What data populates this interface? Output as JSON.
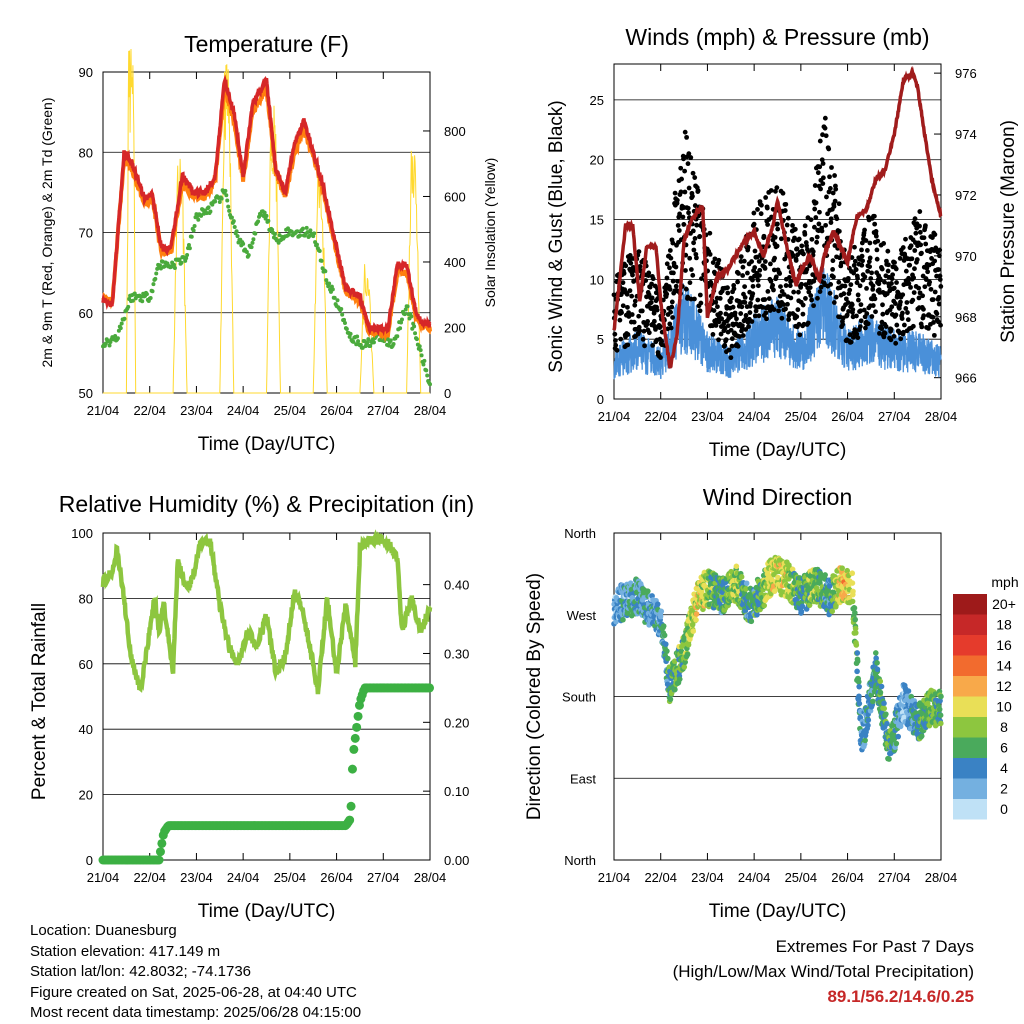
{
  "chart_data": [
    {
      "type": "line",
      "title": "Temperature (F)",
      "xlabel": "Time (Day/UTC)",
      "ylabel": "2m & 9m T (Red, Orange) & 2m Td (Green)",
      "y2label": "Solar Insolation (Yellow)",
      "x_ticks": [
        "21/04",
        "22/04",
        "23/04",
        "24/04",
        "25/04",
        "26/04",
        "27/04",
        "28/04"
      ],
      "ylim": [
        50,
        90
      ],
      "y_ticks": [
        50,
        60,
        70,
        80,
        90
      ],
      "y2lim": [
        0,
        980
      ],
      "y2_ticks": [
        0,
        200,
        400,
        600,
        800
      ],
      "grid": "horizontal",
      "series": [
        {
          "color": "#d62728",
          "days": [
            0,
            0.2,
            0.45,
            0.6,
            0.9,
            1.05,
            1.25,
            1.45,
            1.7,
            1.95,
            2.2,
            2.4,
            2.6,
            2.8,
            3.0,
            3.2,
            3.5,
            3.7,
            3.9,
            4.1,
            4.3,
            4.5,
            4.7,
            5.0,
            5.2,
            5.5,
            5.7,
            5.9,
            6.1,
            6.3,
            6.5,
            6.7,
            6.8,
            7.0
          ],
          "values": [
            61.5,
            61,
            80,
            79,
            74,
            75,
            68,
            68,
            77,
            75,
            75,
            77,
            89,
            85,
            77,
            86,
            89,
            78,
            75,
            81,
            84,
            80,
            76,
            68,
            63,
            62,
            58,
            58,
            58,
            66,
            66,
            60,
            59,
            58.5
          ]
        },
        {
          "color": "#ff7f0e",
          "days": [
            0,
            0.2,
            0.45,
            0.6,
            0.9,
            1.05,
            1.25,
            1.45,
            1.7,
            1.95,
            2.2,
            2.4,
            2.6,
            2.8,
            3.0,
            3.2,
            3.5,
            3.7,
            3.9,
            4.1,
            4.3,
            4.5,
            4.7,
            5.0,
            5.2,
            5.5,
            5.7,
            5.9,
            6.1,
            6.3,
            6.5,
            6.7,
            6.8,
            7.0
          ],
          "values": [
            62,
            61.5,
            79,
            78,
            73.5,
            74.5,
            67.5,
            67.5,
            76,
            74.5,
            74.5,
            76.5,
            88,
            84,
            76.5,
            85,
            88,
            77.5,
            74.5,
            80,
            83,
            79.5,
            75.5,
            67.5,
            62.5,
            61.5,
            57.5,
            57.5,
            57.5,
            65,
            65,
            59.5,
            58.5,
            58
          ]
        },
        {
          "color": "#4aaa3c",
          "days": [
            0,
            0.3,
            0.6,
            1.0,
            1.2,
            1.5,
            1.8,
            2.0,
            2.3,
            2.6,
            2.9,
            3.1,
            3.4,
            3.7,
            3.9,
            4.2,
            4.5,
            4.8,
            5.1,
            5.3,
            5.6,
            5.9,
            6.2,
            6.5,
            6.8,
            7.0
          ],
          "values": [
            56,
            57,
            62,
            62,
            66,
            66,
            67,
            72,
            73,
            75,
            69,
            67,
            73,
            69,
            70,
            70,
            70,
            64,
            60,
            57,
            56,
            57,
            56,
            61,
            55,
            51
          ]
        },
        {
          "color": "#ffd92f",
          "days": [
            0,
            0.5,
            0.55,
            0.65,
            0.7,
            1.5,
            1.6,
            1.7,
            1.8,
            2.5,
            2.6,
            2.7,
            2.8,
            3.5,
            3.6,
            3.7,
            3.8,
            4.5,
            4.6,
            4.7,
            4.8,
            5.5,
            5.6,
            5.7,
            5.8,
            6.5,
            6.6,
            6.7,
            6.8,
            7.0
          ],
          "values": [
            0,
            0,
            950,
            900,
            0,
            0,
            650,
            620,
            0,
            0,
            900,
            880,
            0,
            0,
            800,
            760,
            0,
            0,
            600,
            560,
            0,
            0,
            350,
            300,
            0,
            0,
            700,
            650,
            0,
            0
          ]
        }
      ]
    },
    {
      "type": "line+scatter",
      "title": "Winds (mph) & Pressure (mb)",
      "xlabel": "Time (Day/UTC)",
      "ylabel": "Sonic Wind & Gust (Blue, Black)",
      "y2label": "Station Pressure (Maroon)",
      "x_ticks": [
        "21/04",
        "22/04",
        "23/04",
        "24/04",
        "25/04",
        "26/04",
        "27/04",
        "28/04"
      ],
      "ylim": [
        0,
        28
      ],
      "y_ticks": [
        0,
        5,
        10,
        15,
        20,
        25
      ],
      "y2lim": [
        965.3,
        976.3
      ],
      "y2_ticks": [
        966,
        968,
        970,
        972,
        974,
        976
      ],
      "grid": "horizontal",
      "series": [
        {
          "color": "#4a90d9",
          "days": [
            0,
            0.5,
            1.0,
            1.5,
            2.0,
            2.5,
            3.0,
            3.5,
            4.0,
            4.5,
            5.0,
            5.5,
            6.0,
            6.5,
            7.0
          ],
          "values": [
            3,
            4,
            3,
            7,
            4,
            3,
            5,
            6,
            4,
            8,
            4,
            5,
            4,
            4,
            3
          ]
        },
        {
          "color": "#000000",
          "days": [
            0,
            0.5,
            1.0,
            1.5,
            2.0,
            2.5,
            3.0,
            3.5,
            4.0,
            4.5,
            5.0,
            5.5,
            6.0,
            6.5,
            7.0
          ],
          "values": [
            7,
            9,
            6,
            16,
            10,
            6,
            11,
            13,
            9,
            17,
            8,
            11,
            8,
            11,
            9
          ]
        },
        {
          "color": "#a01c1c",
          "days": [
            0,
            0.25,
            0.4,
            0.55,
            0.7,
            0.9,
            1.0,
            1.2,
            1.35,
            1.5,
            1.7,
            1.9,
            2.0,
            2.2,
            2.4,
            2.6,
            2.8,
            3.0,
            3.2,
            3.4,
            3.5,
            3.7,
            3.9,
            4.0,
            4.2,
            4.4,
            4.5,
            4.7,
            5.0,
            5.2,
            5.4,
            5.6,
            5.8,
            6.0,
            6.2,
            6.4,
            6.5,
            6.7,
            6.8,
            7.0
          ],
          "values": [
            967.5,
            971,
            971,
            968.5,
            970.3,
            970.3,
            968.5,
            966.3,
            967.4,
            970.5,
            971.3,
            971.6,
            968,
            969.3,
            969.5,
            970,
            970.5,
            970.8,
            970,
            971,
            971.8,
            970.3,
            969,
            969.5,
            970,
            969.2,
            970,
            970.8,
            969.8,
            971.3,
            971.5,
            972.5,
            972.8,
            974,
            975.8,
            976,
            975.5,
            973.5,
            972.5,
            971.3
          ]
        }
      ]
    },
    {
      "type": "line",
      "title": "Relative Humidity (%) & Precipitation (in)",
      "xlabel": "Time (Day/UTC)",
      "ylabel": "Percent & Total Rainfall",
      "x_ticks": [
        "21/04",
        "22/04",
        "23/04",
        "24/04",
        "25/04",
        "26/04",
        "27/04",
        "28/04"
      ],
      "ylim": [
        0,
        100
      ],
      "y_ticks": [
        0,
        20,
        40,
        60,
        80,
        100
      ],
      "y2lim": [
        0,
        0.475
      ],
      "y2_ticks": [
        "0.00",
        "0.10",
        "0.20",
        "0.30",
        "0.40"
      ],
      "grid": "horizontal",
      "series": [
        {
          "color": "#8dc63f",
          "days": [
            0,
            0.2,
            0.3,
            0.45,
            0.6,
            0.8,
            0.9,
            1.1,
            1.2,
            1.3,
            1.5,
            1.6,
            1.8,
            1.95,
            2.1,
            2.3,
            2.5,
            2.7,
            2.9,
            3.1,
            3.3,
            3.5,
            3.7,
            3.9,
            4.1,
            4.3,
            4.6,
            4.8,
            5.0,
            5.2,
            5.4,
            5.5,
            5.7,
            5.9,
            6.1,
            6.3,
            6.4,
            6.6,
            6.8,
            7.0
          ],
          "values": [
            85,
            88,
            95,
            80,
            62,
            52,
            60,
            80,
            70,
            78,
            58,
            92,
            82,
            88,
            98,
            97,
            78,
            65,
            60,
            70,
            65,
            75,
            57,
            62,
            82,
            75,
            52,
            80,
            57,
            78,
            60,
            95,
            98,
            98,
            97,
            92,
            70,
            80,
            70,
            77
          ]
        },
        {
          "color": "#3cb043",
          "days": [
            0,
            1.2,
            1.3,
            1.4,
            5.2,
            5.3,
            5.35,
            5.5,
            5.6,
            7.0
          ],
          "values": [
            0,
            0,
            0.04,
            0.05,
            0.05,
            0.06,
            0.15,
            0.23,
            0.25,
            0.25
          ]
        }
      ]
    },
    {
      "type": "scatter",
      "title": "Wind Direction",
      "xlabel": "Time (Day/UTC)",
      "ylabel": "Direction (Colored By Speed)",
      "x_ticks": [
        "21/04",
        "22/04",
        "23/04",
        "24/04",
        "25/04",
        "26/04",
        "27/04",
        "28/04"
      ],
      "y_tick_labels": [
        "North",
        "East",
        "South",
        "West",
        "North"
      ],
      "ylim": [
        0,
        360
      ],
      "grid": "horizontal",
      "legend": {
        "title": "mph",
        "labels": [
          "20+",
          "18",
          "16",
          "14",
          "12",
          "10",
          "8",
          "6",
          "4",
          "2",
          "0"
        ],
        "colors": [
          "#9e1a1a",
          "#c62828",
          "#e53b2c",
          "#f26b2e",
          "#f8a94a",
          "#e9df57",
          "#8dc63f",
          "#4aaa5c",
          "#3a82c4",
          "#74b0e0",
          "#bfe1f6"
        ],
        "placement": "right"
      },
      "track": {
        "days": [
          0,
          0.5,
          1.0,
          1.2,
          1.5,
          1.8,
          2.0,
          2.3,
          2.6,
          2.9,
          3.1,
          3.4,
          3.7,
          4.0,
          4.3,
          4.6,
          4.9,
          5.1,
          5.3,
          5.6,
          5.9,
          6.2,
          6.5,
          6.8,
          7.0
        ],
        "values": [
          280,
          290,
          260,
          190,
          230,
          290,
          300,
          290,
          305,
          280,
          290,
          315,
          310,
          290,
          305,
          290,
          305,
          300,
          130,
          210,
          120,
          175,
          150,
          170,
          165
        ],
        "speeds": [
          3,
          4,
          3,
          6,
          7,
          10,
          8,
          5,
          9,
          4,
          6,
          10,
          9,
          5,
          8,
          4,
          11,
          9,
          3,
          5,
          6,
          2,
          5,
          7,
          6
        ]
      }
    }
  ],
  "footer": {
    "location": "Location: Duanesburg",
    "elevation": "Station elevation: 417.149 m",
    "latlon": "Station lat/lon: 42.8032; -74.1736",
    "created": "Figure created on Sat, 2025-06-28, at 04:40 UTC",
    "recent": "Most recent data timestamp: 2025/06/28 04:15:00",
    "extremes_title": "Extremes For Past 7 Days",
    "extremes_sub": "(High/Low/Max Wind/Total Precipitation)",
    "extremes_values": "89.1/56.2/14.6/0.25"
  }
}
